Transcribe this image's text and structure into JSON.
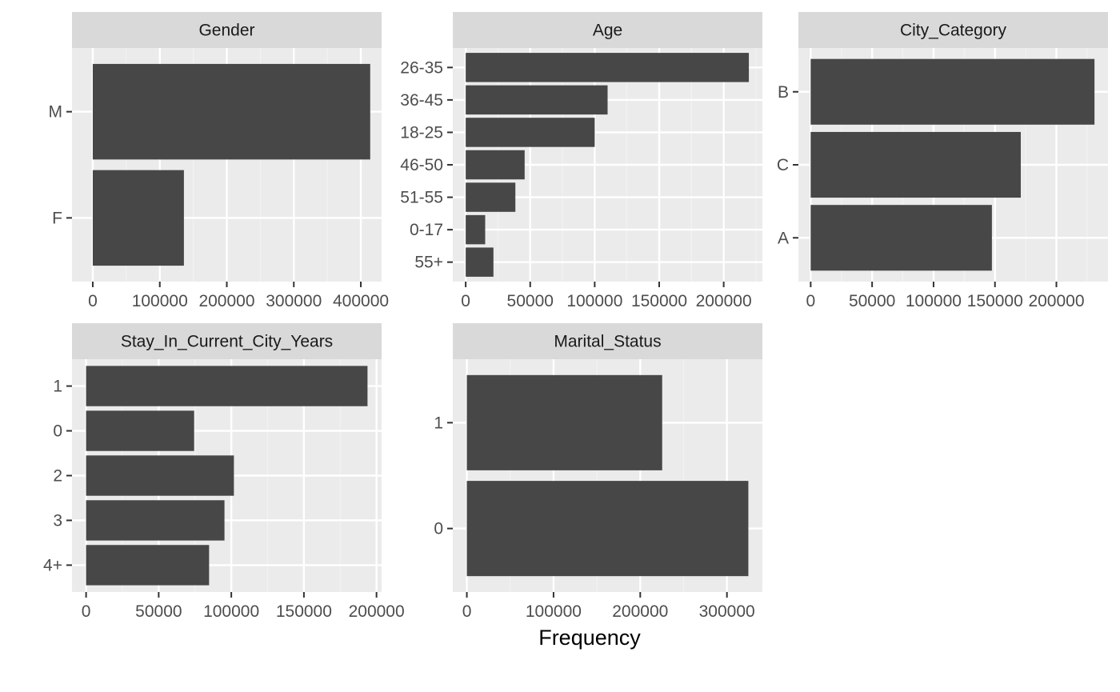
{
  "colors": {
    "panel_bg": "#EBEBEB",
    "strip_bg": "#D9D9D9",
    "bar": "#474747",
    "grid_major": "#FFFFFF",
    "grid_minor": "#F2F2F2",
    "tick": "#333333"
  },
  "x_axis_title": "Frequency",
  "chart_data": [
    {
      "type": "bar",
      "orientation": "horizontal",
      "title": "Gender",
      "categories": [
        "M",
        "F"
      ],
      "values": [
        414000,
        136000
      ],
      "xlim": [
        -31000,
        431000
      ],
      "xticks": [
        0,
        100000,
        200000,
        300000,
        400000
      ],
      "xtick_labels": [
        "0",
        "100000",
        "200000",
        "300000",
        "400000"
      ],
      "grid": true
    },
    {
      "type": "bar",
      "orientation": "horizontal",
      "title": "Age",
      "categories": [
        "26-35",
        "36-45",
        "18-25",
        "46-50",
        "51-55",
        "0-17",
        "55+"
      ],
      "values": [
        219500,
        110000,
        100000,
        45700,
        38500,
        15100,
        21500
      ],
      "xlim": [
        -10000,
        230000
      ],
      "xticks": [
        0,
        50000,
        100000,
        150000,
        200000
      ],
      "xtick_labels": [
        "0",
        "50000",
        "100000",
        "150000",
        "200000"
      ],
      "grid": true
    },
    {
      "type": "bar",
      "orientation": "horizontal",
      "title": "City_Category",
      "categories": [
        "B",
        "C",
        "A"
      ],
      "values": [
        231000,
        171000,
        147500
      ],
      "xlim": [
        -10000,
        242000
      ],
      "xticks": [
        0,
        50000,
        100000,
        150000,
        200000
      ],
      "xtick_labels": [
        "0",
        "50000",
        "100000",
        "150000",
        "200000"
      ],
      "grid": true
    },
    {
      "type": "bar",
      "orientation": "horizontal",
      "title": "Stay_In_Current_City_Years",
      "categories": [
        "1",
        "0",
        "2",
        "3",
        "4+"
      ],
      "values": [
        193800,
        74400,
        101800,
        95300,
        84700
      ],
      "xlim": [
        -9700,
        203500
      ],
      "xticks": [
        0,
        50000,
        100000,
        150000,
        200000
      ],
      "xtick_labels": [
        "0",
        "50000",
        "100000",
        "150000",
        "200000"
      ],
      "grid": true
    },
    {
      "type": "bar",
      "orientation": "horizontal",
      "title": "Marital_Status",
      "categories": [
        "1",
        "0"
      ],
      "values": [
        225300,
        324700
      ],
      "xlim": [
        -16200,
        340900
      ],
      "xticks": [
        0,
        100000,
        200000,
        300000
      ],
      "xtick_labels": [
        "0",
        "100000",
        "200000",
        "300000"
      ],
      "grid": true
    }
  ]
}
